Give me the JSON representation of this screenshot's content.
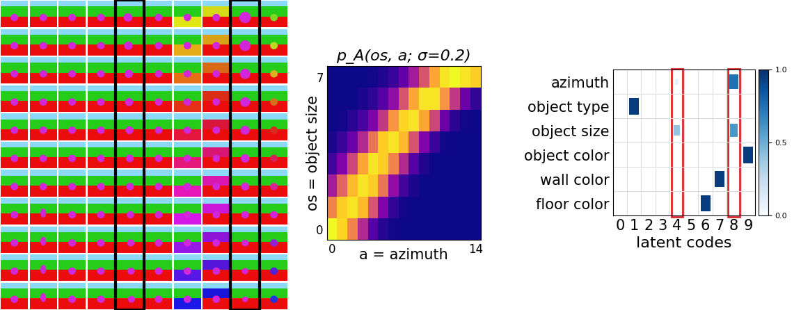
{
  "chart_data": [
    {
      "type": "heatmap",
      "title": "p_A(os, a; σ=0.2)",
      "xlabel": "a = azimuth",
      "ylabel": "os = object size",
      "x": [
        0,
        1,
        2,
        3,
        4,
        5,
        6,
        7,
        8,
        9,
        10,
        11,
        12,
        13,
        14
      ],
      "y": [
        0,
        1,
        2,
        3,
        4,
        5,
        6,
        7
      ],
      "cells": [
        [
          1.0,
          0.92,
          0.7,
          0.4,
          0.15,
          0.04,
          0.01,
          0,
          0,
          0,
          0,
          0,
          0,
          0,
          0
        ],
        [
          0.7,
          0.9,
          0.95,
          0.85,
          0.55,
          0.25,
          0.07,
          0.01,
          0,
          0,
          0,
          0,
          0,
          0,
          0
        ],
        [
          0.35,
          0.6,
          0.85,
          0.95,
          0.9,
          0.65,
          0.3,
          0.1,
          0.02,
          0,
          0,
          0,
          0,
          0,
          0
        ],
        [
          0.1,
          0.25,
          0.5,
          0.8,
          0.95,
          0.9,
          0.7,
          0.4,
          0.15,
          0.03,
          0,
          0,
          0,
          0,
          0
        ],
        [
          0.02,
          0.08,
          0.2,
          0.4,
          0.65,
          0.9,
          0.95,
          0.85,
          0.55,
          0.25,
          0.08,
          0.01,
          0,
          0,
          0
        ],
        [
          0,
          0.01,
          0.05,
          0.12,
          0.25,
          0.45,
          0.75,
          0.92,
          0.95,
          0.8,
          0.5,
          0.2,
          0.05,
          0.01,
          0
        ],
        [
          0,
          0,
          0,
          0.02,
          0.06,
          0.15,
          0.3,
          0.55,
          0.8,
          0.95,
          0.95,
          0.75,
          0.45,
          0.2,
          0.07
        ],
        [
          0,
          0,
          0,
          0,
          0.01,
          0.03,
          0.08,
          0.18,
          0.35,
          0.55,
          0.8,
          0.95,
          1.0,
          0.95,
          0.9
        ]
      ],
      "xlim": [
        -0.5,
        14.5
      ],
      "ylim": [
        -0.5,
        7.5
      ],
      "xticks": [
        0,
        14
      ],
      "yticks": [
        0,
        7
      ]
    },
    {
      "type": "heatmap",
      "xlabel": "latent codes",
      "categories": [
        "azimuth",
        "object type",
        "object size",
        "object color",
        "wall color",
        "floor color"
      ],
      "x": [
        0,
        1,
        2,
        3,
        4,
        5,
        6,
        7,
        8,
        9
      ],
      "cells": [
        [
          0,
          0,
          0,
          0,
          0.1,
          0,
          0,
          0,
          0.75,
          0
        ],
        [
          0,
          0.95,
          0,
          0,
          0,
          0,
          0,
          0,
          0,
          0
        ],
        [
          0,
          0,
          0,
          0,
          0.4,
          0,
          0,
          0,
          0.6,
          0
        ],
        [
          0,
          0,
          0,
          0,
          0,
          0,
          0,
          0,
          0,
          0.95
        ],
        [
          0,
          0,
          0,
          0,
          0,
          0,
          0,
          0.95,
          0,
          0
        ],
        [
          0,
          0,
          0,
          0,
          0,
          0,
          0.95,
          0,
          0,
          0
        ]
      ],
      "xlim": [
        -0.5,
        9.5
      ],
      "xticks": [
        0,
        1,
        2,
        3,
        4,
        5,
        6,
        7,
        8,
        9
      ],
      "colorbar_range": [
        0,
        1
      ],
      "colorbar_ticks": [
        {
          "value": 0,
          "label": "0.0"
        },
        {
          "value": 0.5,
          "label": "0.5"
        },
        {
          "value": 1,
          "label": "1.0"
        }
      ],
      "grid": true
    }
  ]
}
